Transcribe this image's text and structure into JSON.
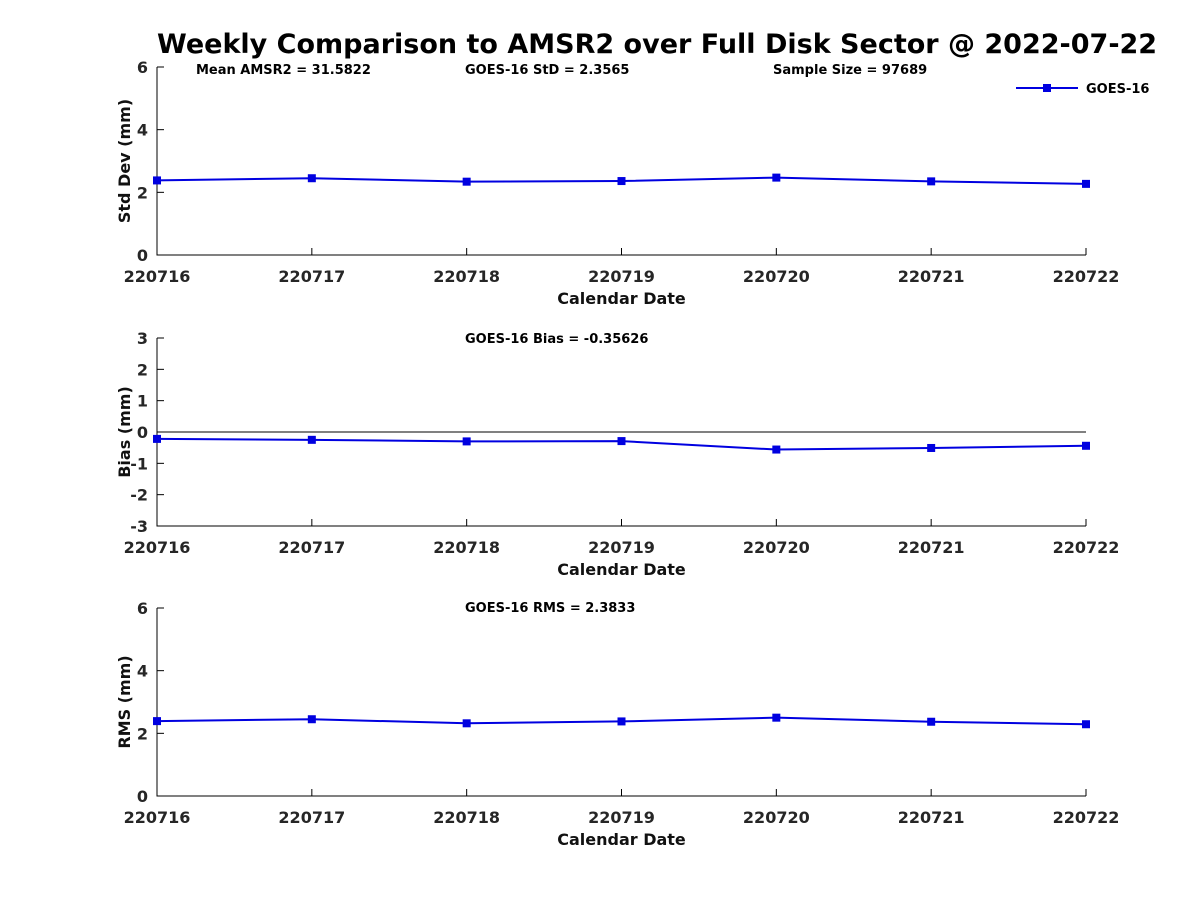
{
  "figure": {
    "title": "Weekly Comparison to AMSR2 over Full Disk Sector @ 2022-07-22",
    "legend": {
      "label": "GOES-16",
      "position": "top-right",
      "marker": "square"
    },
    "colors": {
      "series": "#0000e0",
      "axis": "#000000",
      "tick_label": "#262626",
      "text": "#000000"
    }
  },
  "chart_data": [
    {
      "type": "line",
      "ylabel": "Std Dev (mm)",
      "xlabel": "Calendar Date",
      "ylim": [
        0,
        6
      ],
      "yticks": [
        0,
        2,
        4,
        6
      ],
      "x": [
        "220716",
        "220717",
        "220718",
        "220719",
        "220720",
        "220721",
        "220722"
      ],
      "series": [
        {
          "name": "GOES-16",
          "marker": "square",
          "values": [
            2.38,
            2.45,
            2.34,
            2.36,
            2.47,
            2.35,
            2.27
          ]
        }
      ],
      "annotations": [
        "Mean AMSR2 = 31.5822",
        "GOES-16 StD = 2.3565",
        "Sample Size = 97689"
      ],
      "grid": false,
      "legend_visible": true
    },
    {
      "type": "line",
      "ylabel": "Bias (mm)",
      "xlabel": "Calendar Date",
      "ylim": [
        -3,
        3
      ],
      "yticks": [
        -3,
        -2,
        -1,
        0,
        1,
        2,
        3
      ],
      "x": [
        "220716",
        "220717",
        "220718",
        "220719",
        "220720",
        "220721",
        "220722"
      ],
      "series": [
        {
          "name": "GOES-16",
          "marker": "square",
          "values": [
            -0.22,
            -0.25,
            -0.3,
            -0.29,
            -0.56,
            -0.51,
            -0.44
          ]
        }
      ],
      "annotations": [
        "GOES-16 Bias  = -0.35626"
      ],
      "zero_line": true,
      "grid": false,
      "legend_visible": false
    },
    {
      "type": "line",
      "ylabel": "RMS (mm)",
      "xlabel": "Calendar Date",
      "ylim": [
        0,
        6
      ],
      "yticks": [
        0,
        2,
        4,
        6
      ],
      "x": [
        "220716",
        "220717",
        "220718",
        "220719",
        "220720",
        "220721",
        "220722"
      ],
      "series": [
        {
          "name": "GOES-16",
          "marker": "square",
          "values": [
            2.39,
            2.45,
            2.32,
            2.38,
            2.5,
            2.37,
            2.29
          ]
        }
      ],
      "annotations": [
        "GOES-16 RMS = 2.3833"
      ],
      "grid": false,
      "legend_visible": false
    }
  ]
}
